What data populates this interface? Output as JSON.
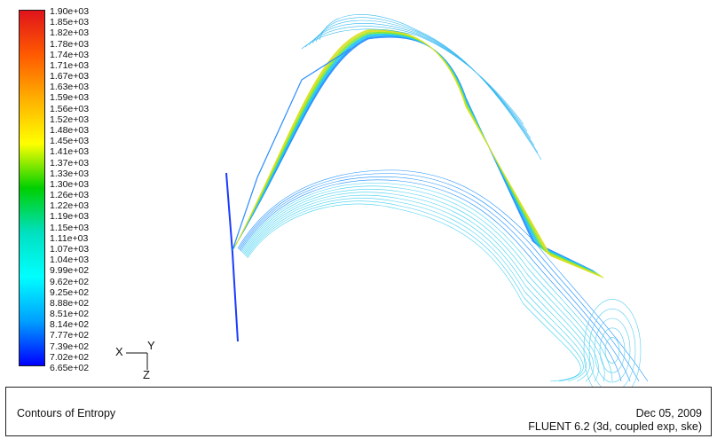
{
  "chart_data": {
    "type": "contour",
    "title": "Contours of Entropy",
    "colormap": "rainbow (blue-cyan-green-yellow-red)",
    "colorbar": {
      "min": 665,
      "max": 1900,
      "tick_labels": [
        "1.90e+03",
        "1.85e+03",
        "1.82e+03",
        "1.78e+03",
        "1.74e+03",
        "1.71e+03",
        "1.67e+03",
        "1.63e+03",
        "1.59e+03",
        "1.56e+03",
        "1.52e+03",
        "1.48e+03",
        "1.45e+03",
        "1.41e+03",
        "1.37e+03",
        "1.33e+03",
        "1.30e+03",
        "1.26e+03",
        "1.22e+03",
        "1.19e+03",
        "1.15e+03",
        "1.11e+03",
        "1.07e+03",
        "1.04e+03",
        "9.99e+02",
        "9.62e+02",
        "9.25e+02",
        "8.88e+02",
        "8.51e+02",
        "8.14e+02",
        "7.77e+02",
        "7.39e+02",
        "7.02e+02",
        "6.65e+02"
      ],
      "colors": [
        "#e0141c",
        "#ff5a00",
        "#ffb000",
        "#ffff00",
        "#00d000",
        "#00e0c0",
        "#00ffff",
        "#00a0ff",
        "#0000ff"
      ]
    },
    "axes_triad": {
      "x_label": "X",
      "y_label": "Y",
      "z_label": "Z"
    }
  },
  "info_bar": {
    "title": "Contours of Entropy",
    "date": "Dec 05, 2009",
    "solver": "FLUENT 6.2 (3d, coupled exp, ske)"
  }
}
